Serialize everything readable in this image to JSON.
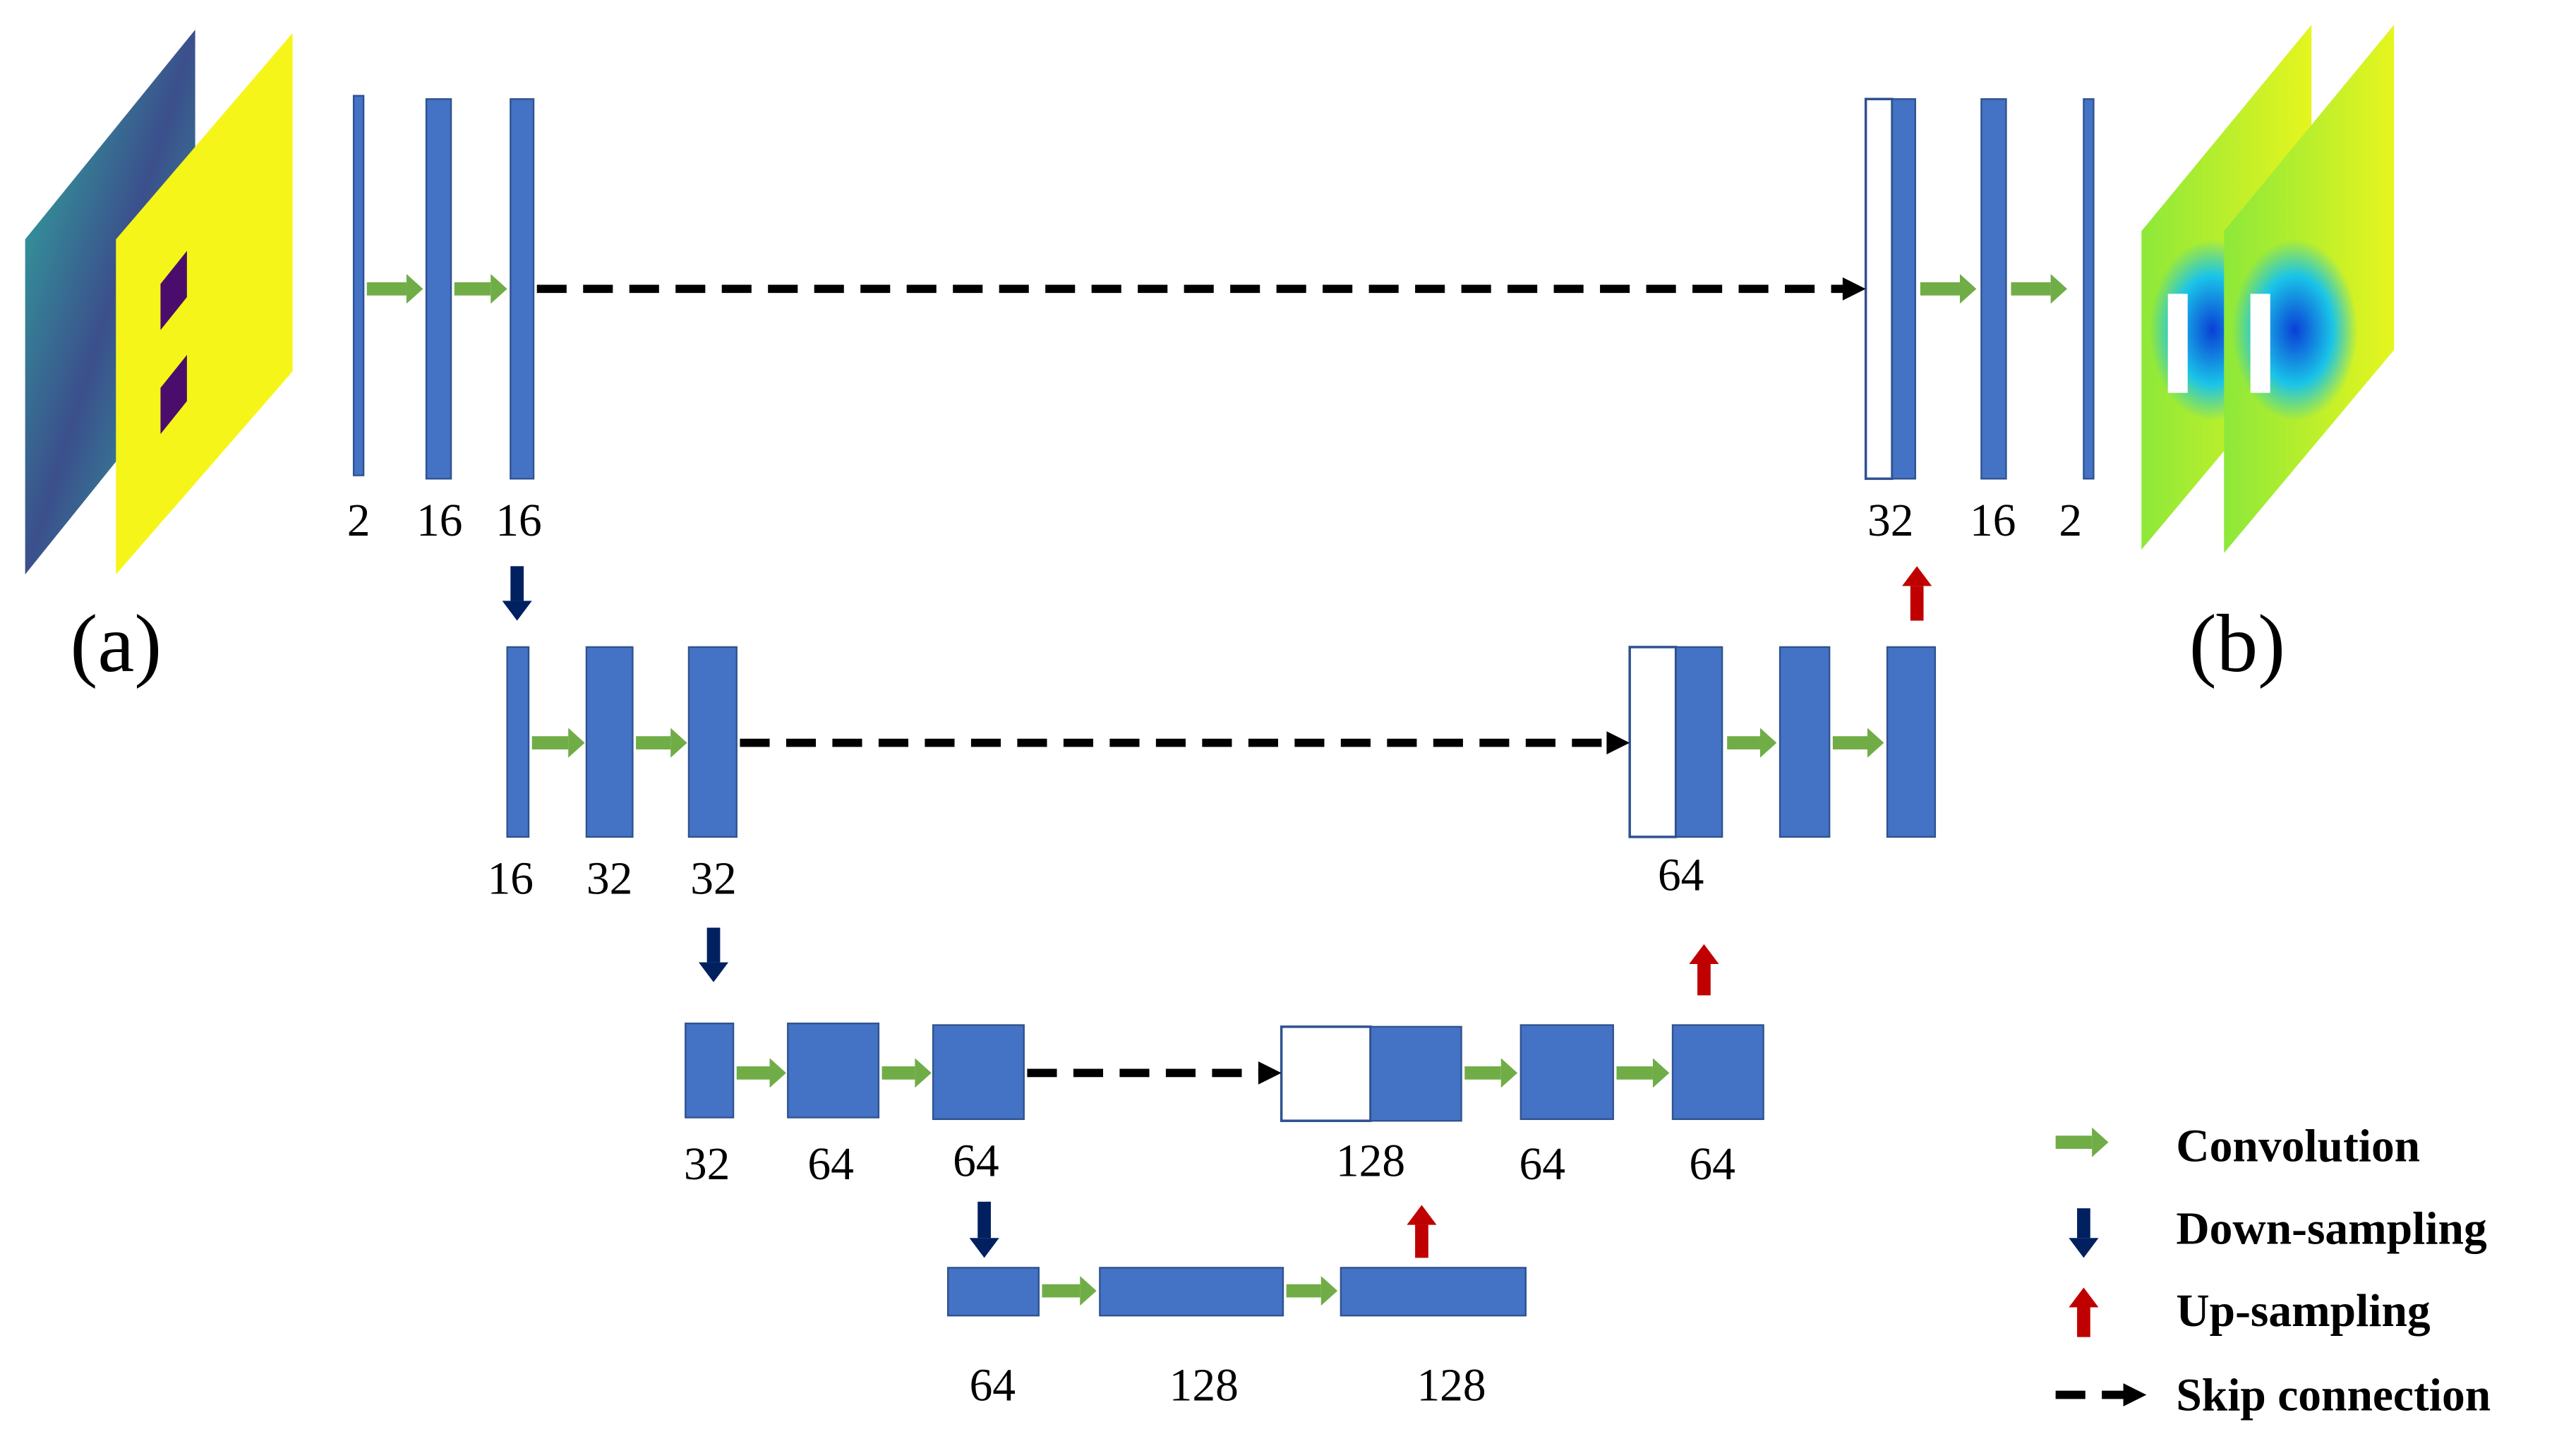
{
  "panels": [
    "(a)",
    "(b)"
  ],
  "levels": [
    {
      "encoder": [
        "2",
        "16",
        "16"
      ],
      "decoder": [
        "32",
        "16",
        "2"
      ]
    },
    {
      "encoder": [
        "16",
        "32",
        "32"
      ],
      "decoder": [
        "64"
      ]
    },
    {
      "encoder": [
        "32",
        "64",
        "64"
      ],
      "decoder": [
        "128",
        "64",
        "64"
      ]
    },
    {
      "bottleneck": [
        "64",
        "128",
        "128"
      ]
    }
  ],
  "legend": [
    "Convolution",
    "Down-sampling",
    "Up-sampling",
    "Skip connection"
  ]
}
